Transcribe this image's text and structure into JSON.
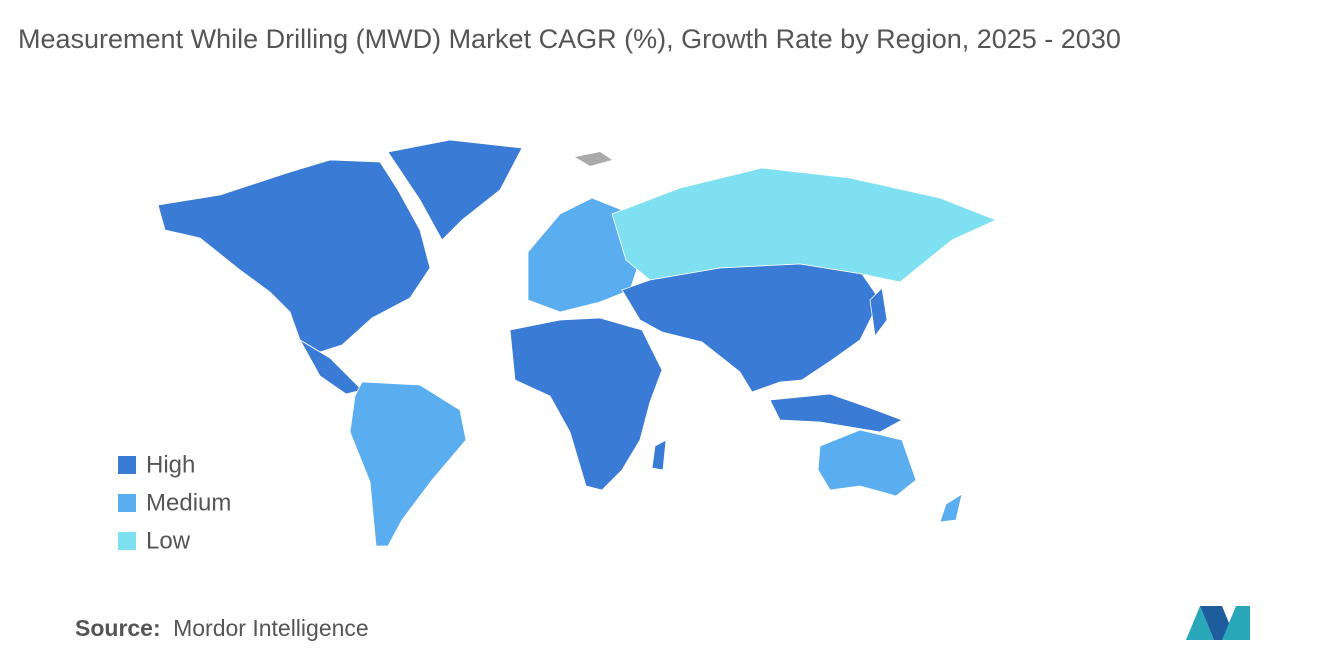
{
  "title": "Measurement While Drilling (MWD) Market CAGR (%), Growth Rate by Region, 2025 - 2030",
  "legend": [
    {
      "label": "High",
      "color": "#3a7bd5"
    },
    {
      "label": "Medium",
      "color": "#5aaef0"
    },
    {
      "label": "Low",
      "color": "#7ee0f0"
    }
  ],
  "source": {
    "label": "Source:",
    "value": "Mordor Intelligence"
  }
}
